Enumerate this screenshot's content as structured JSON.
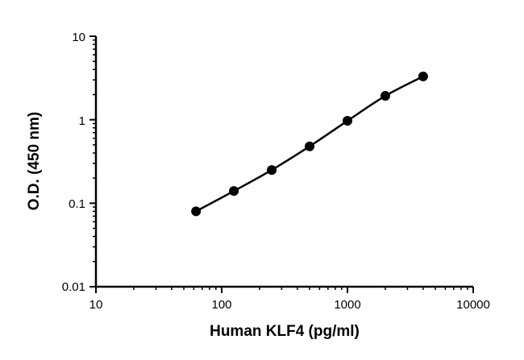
{
  "chart_data": {
    "type": "scatter",
    "xlabel": "Human KLF4 (pg/ml)",
    "ylabel": "O.D. (450 nm)",
    "x_scale": "log",
    "y_scale": "log",
    "xlim": [
      10,
      10000
    ],
    "ylim": [
      0.01,
      10
    ],
    "x_ticks": [
      "10",
      "100",
      "1000",
      "10000"
    ],
    "y_ticks": [
      "0.01",
      "0.1",
      "1",
      "10"
    ],
    "grid": false,
    "series": [
      {
        "x": [
          62.5,
          125,
          250,
          500,
          1000,
          2000,
          4000
        ],
        "y": [
          0.08,
          0.14,
          0.25,
          0.48,
          0.97,
          1.93,
          3.3
        ]
      }
    ]
  }
}
